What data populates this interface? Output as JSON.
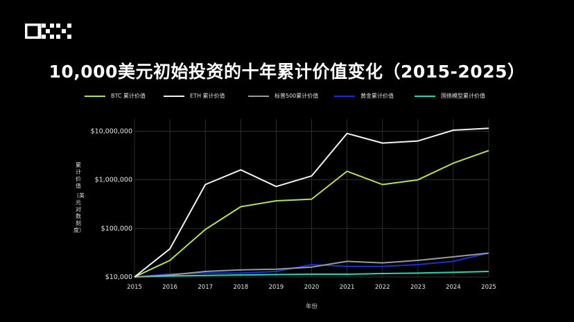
{
  "logo": {
    "text": "OKX",
    "icon": "okx-logo-icon"
  },
  "chart_data": {
    "type": "line",
    "title": "10,000美元初始投资的十年累计价值变化（2015-2025）",
    "xlabel": "年份",
    "ylabel": "累计价值",
    "ylabel_sub": "（美元 对数刻度）",
    "yscale": "log",
    "ylim": [
      10000,
      12000000
    ],
    "x": [
      2015,
      2016,
      2017,
      2018,
      2019,
      2020,
      2021,
      2022,
      2023,
      2024,
      2025
    ],
    "x_ticks": [
      "2015",
      "2016",
      "2017",
      "2018",
      "2019",
      "2020",
      "2021",
      "2022",
      "2023",
      "2024",
      "2025"
    ],
    "y_ticks": [
      {
        "value": 10000,
        "label": "$10,000"
      },
      {
        "value": 100000,
        "label": "$100,000"
      },
      {
        "value": 1000000,
        "label": "$1,000,000"
      },
      {
        "value": 10000000,
        "label": "$10,000,000"
      }
    ],
    "grid": true,
    "legend_position": "top",
    "series": [
      {
        "name": "BTC 累计价值",
        "color": "#b5e05a",
        "values": [
          10000,
          22000,
          95000,
          280000,
          370000,
          400000,
          1500000,
          800000,
          1000000,
          2200000,
          4000000
        ]
      },
      {
        "name": "ETH 累计价值",
        "color": "#f2f2f2",
        "values": [
          10000,
          38000,
          800000,
          1600000,
          730000,
          1200000,
          9000000,
          5700000,
          6300000,
          10500000,
          11500000
        ]
      },
      {
        "name": "标普500累计价值",
        "color": "#9a9a9a",
        "values": [
          10000,
          11000,
          13000,
          14000,
          14500,
          16000,
          21000,
          19500,
          22000,
          26000,
          31000
        ]
      },
      {
        "name": "黄金累计价值",
        "color": "#1c2fd6",
        "values": [
          10000,
          11500,
          12000,
          12000,
          13000,
          18000,
          16500,
          16500,
          18000,
          21000,
          31000
        ]
      },
      {
        "name": "国债模型累计价值",
        "color": "#2bd6b4",
        "values": [
          10000,
          10500,
          10800,
          11000,
          11200,
          11400,
          11400,
          11800,
          12000,
          12500,
          13000
        ]
      }
    ]
  }
}
